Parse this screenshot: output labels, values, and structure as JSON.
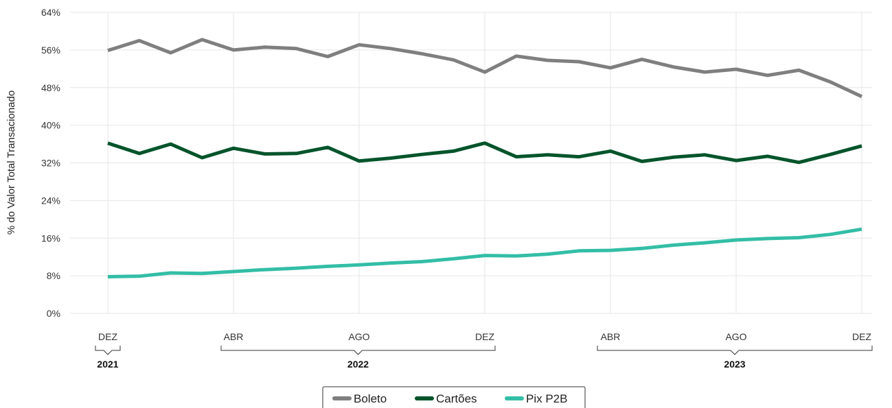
{
  "chart_data": {
    "type": "line",
    "ylabel": "% do Valor Total Transacionado",
    "y_ticks": [
      "0%",
      "8%",
      "16%",
      "24%",
      "32%",
      "40%",
      "48%",
      "56%",
      "64%"
    ],
    "ylim": [
      0,
      64
    ],
    "x_ticks": [
      {
        "index": 0,
        "label": "DEZ"
      },
      {
        "index": 4,
        "label": "ABR"
      },
      {
        "index": 8,
        "label": "AGO"
      },
      {
        "index": 12,
        "label": "DEZ"
      },
      {
        "index": 16,
        "label": "ABR"
      },
      {
        "index": 20,
        "label": "AGO"
      },
      {
        "index": 24,
        "label": "DEZ"
      }
    ],
    "year_groups": [
      {
        "label": "2021",
        "start": 0,
        "end": 0
      },
      {
        "label": "2022",
        "start": 1,
        "end": 12
      },
      {
        "label": "2023",
        "start": 13,
        "end": 24
      }
    ],
    "series": [
      {
        "name": "Boleto",
        "color": "#7f7f7f",
        "values": [
          55.9,
          58.0,
          55.4,
          58.2,
          56.0,
          56.6,
          56.3,
          54.6,
          57.1,
          56.3,
          55.2,
          53.9,
          51.3,
          54.7,
          53.8,
          53.5,
          52.2,
          54.0,
          52.4,
          51.3,
          51.9,
          50.6,
          51.7,
          49.2,
          46.1
        ]
      },
      {
        "name": "Cartões",
        "color": "#00542a",
        "values": [
          36.2,
          34.0,
          36.0,
          33.1,
          35.1,
          33.9,
          34.0,
          35.3,
          32.4,
          33.0,
          33.8,
          34.5,
          36.2,
          33.3,
          33.7,
          33.3,
          34.5,
          32.3,
          33.2,
          33.7,
          32.5,
          33.4,
          32.1,
          33.8,
          35.6
        ]
      },
      {
        "name": "Pix P2B",
        "color": "#33bea6",
        "values": [
          7.8,
          7.9,
          8.6,
          8.5,
          8.9,
          9.3,
          9.6,
          10.0,
          10.3,
          10.7,
          11.0,
          11.6,
          12.3,
          12.2,
          12.6,
          13.3,
          13.4,
          13.8,
          14.5,
          15.0,
          15.6,
          15.9,
          16.1,
          16.8,
          17.9
        ]
      }
    ]
  }
}
